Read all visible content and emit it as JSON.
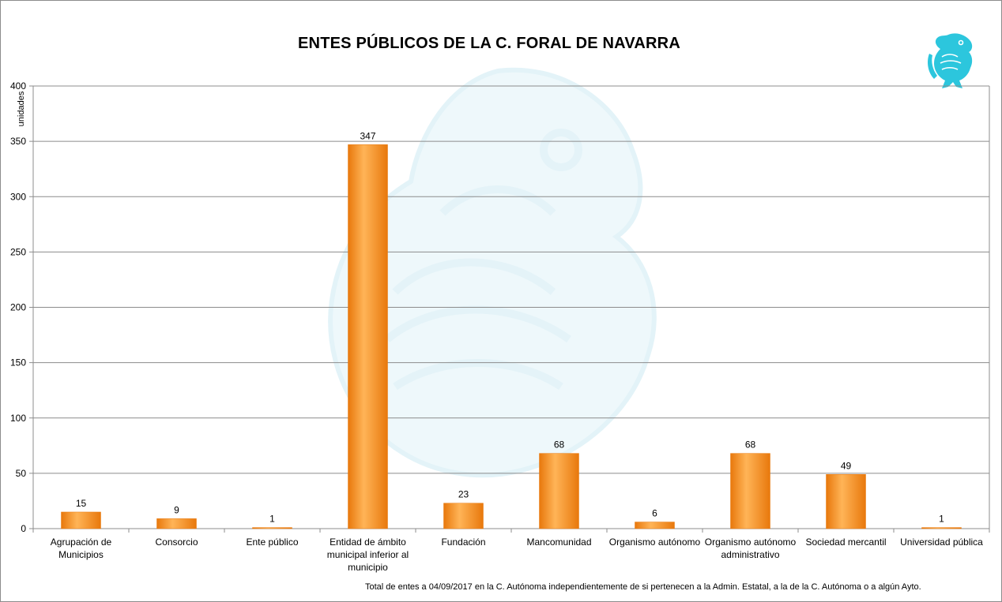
{
  "chart_data": {
    "type": "bar",
    "title": "ENTES PÚBLICOS DE LA C. FORAL DE NAVARRA",
    "ylabel": "unidades",
    "xlabel": "",
    "ylim": [
      0,
      400
    ],
    "yticks": [
      0,
      50,
      100,
      150,
      200,
      250,
      300,
      350,
      400
    ],
    "categories": [
      [
        "Agrupación de",
        "Municipios"
      ],
      [
        "Consorcio"
      ],
      [
        "Ente público"
      ],
      [
        "Entidad de ámbito",
        "municipal inferior al",
        "municipio"
      ],
      [
        "Fundación"
      ],
      [
        "Mancomunidad"
      ],
      [
        "Organismo autónomo"
      ],
      [
        "Organismo autónomo",
        "administrativo"
      ],
      [
        "Sociedad mercantil"
      ],
      [
        "Universidad pública"
      ]
    ],
    "values": [
      15,
      9,
      1,
      347,
      23,
      68,
      6,
      68,
      49,
      1
    ],
    "data_labels": true,
    "grid": true,
    "bar_color": "#f7941d",
    "footnote": "Total de entes  a 04/09/2017 en  la C. Autónoma  independientemente  de  si pertenecen  a la Admin. Estatal, a  la de la C. Autónoma  o  a algún Ayto."
  },
  "colors": {
    "bar_light": "#ffc27a",
    "bar_mid": "#f7941d",
    "bar_dark": "#e0700a",
    "grid": "#8c8c8c",
    "logo": "#2cc6dd",
    "watermark": "#eaf6fa"
  }
}
